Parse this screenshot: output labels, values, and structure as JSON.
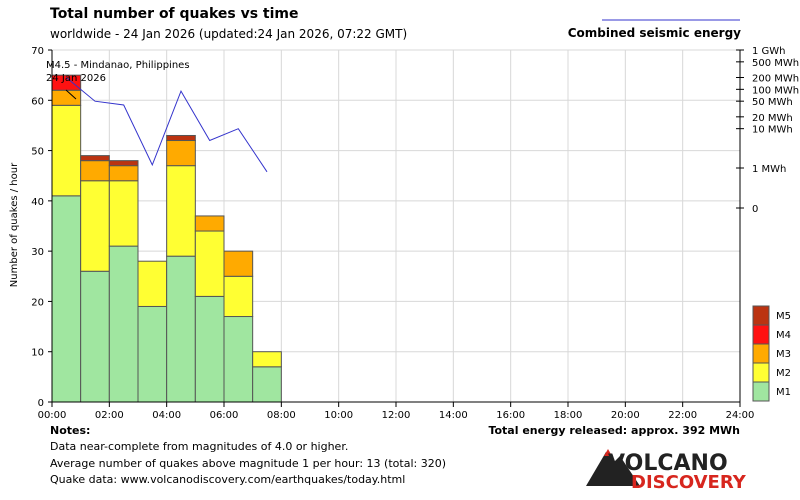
{
  "header": {
    "title": "Total number of quakes vs time",
    "subtitle": "worldwide - 24 Jan 2026 (updated:24 Jan 2026, 07:22 GMT)",
    "energy_legend": "Combined seismic energy"
  },
  "annotation": {
    "line1": "M4.5 - Mindanao, Philippines",
    "line2": "24 Jan 2026"
  },
  "notes": {
    "heading": "Notes:",
    "line1": "Data near-complete from magnitudes of 4.0 or higher.",
    "line2": "Average number of quakes above magnitude 1 per hour: 13 (total: 320)",
    "line3": "Quake data: www.volcanodiscovery.com/earthquakes/today.html"
  },
  "energy_total": "Total energy released: approx. 392 MWh",
  "logo": {
    "line1": "VOLCANO",
    "line2": "DISCOVERY"
  },
  "colors": {
    "M1": "#a0e6a0",
    "M2": "#ffff33",
    "M3": "#ffaa00",
    "M4": "#ff1111",
    "M5": "#bb3311",
    "energy_line": "#3333cc",
    "logo_red": "#d7261e"
  },
  "chart_data": {
    "type": "bar",
    "stacked": true,
    "xlabel": "",
    "ylabel": "Number of quakes / hour",
    "ylim": [
      0,
      70
    ],
    "yticks": [
      0,
      10,
      20,
      30,
      40,
      50,
      60,
      70
    ],
    "xticks": [
      "00:00",
      "02:00",
      "04:00",
      "06:00",
      "08:00",
      "10:00",
      "12:00",
      "14:00",
      "16:00",
      "18:00",
      "20:00",
      "22:00",
      "24:00"
    ],
    "grid": true,
    "hours": 24,
    "series": [
      {
        "name": "M1",
        "values": [
          41,
          26,
          31,
          19,
          29,
          21,
          17,
          7
        ]
      },
      {
        "name": "M2",
        "values": [
          18,
          18,
          13,
          9,
          18,
          13,
          8,
          3
        ]
      },
      {
        "name": "M3",
        "values": [
          3,
          4,
          3,
          0,
          5,
          3,
          5,
          0
        ]
      },
      {
        "name": "M4",
        "values": [
          3,
          0,
          0,
          0,
          0,
          0,
          0,
          0
        ]
      },
      {
        "name": "M5",
        "values": [
          0,
          1,
          1,
          0,
          1,
          0,
          0,
          0
        ]
      }
    ],
    "legend_order": [
      "M5",
      "M4",
      "M3",
      "M2",
      "M1"
    ],
    "energy_axis": {
      "ticks": [
        {
          "label": "1 GWh",
          "mwh": 1000
        },
        {
          "label": "500 MWh",
          "mwh": 500
        },
        {
          "label": "200 MWh",
          "mwh": 200
        },
        {
          "label": "100 MWh",
          "mwh": 100
        },
        {
          "label": "50 MWh",
          "mwh": 50
        },
        {
          "label": "20 MWh",
          "mwh": 20
        },
        {
          "label": "10 MWh",
          "mwh": 10
        },
        {
          "label": "1 MWh",
          "mwh": 1
        }
      ],
      "zero_label": "0"
    },
    "energy_series": {
      "name": "Combined seismic energy",
      "x_hours": [
        0.5,
        1.5,
        2.5,
        3.5,
        4.5,
        5.5,
        6.5,
        7.5
      ],
      "mwh": [
        200,
        50,
        40,
        1.2,
        90,
        5,
        10,
        0.8
      ]
    }
  }
}
